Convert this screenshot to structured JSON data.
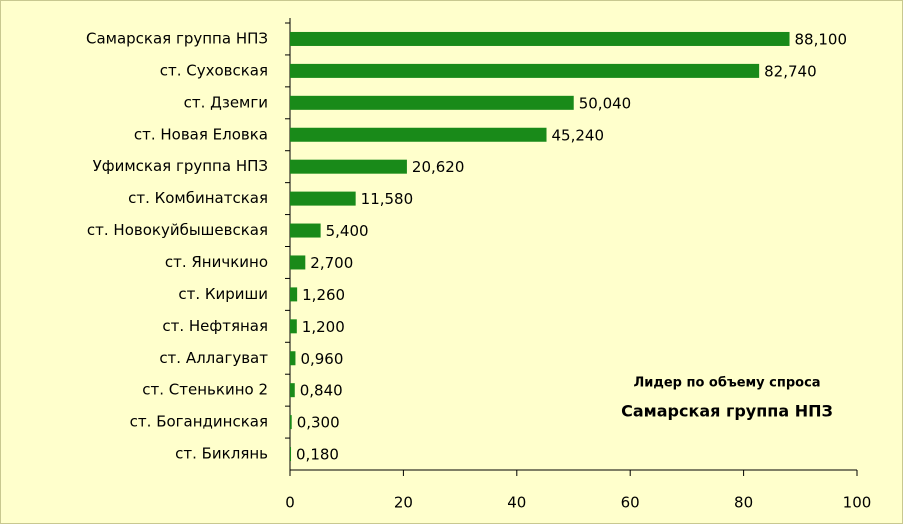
{
  "chart_data": {
    "type": "bar",
    "orientation": "horizontal",
    "categories": [
      "Самарская группа НПЗ",
      "ст. Суховская",
      "ст. Дземги",
      "ст. Новая Еловка",
      "Уфимская группа НПЗ",
      "ст. Комбинатская",
      "ст. Новокуйбышевская",
      "ст. Яничкино",
      "ст. Кириши",
      "ст. Нефтяная",
      "ст. Аллагуват",
      "ст. Стенькино 2",
      "ст. Богандинская",
      "ст. Биклянь"
    ],
    "values": [
      88.1,
      82.74,
      50.04,
      45.24,
      20.62,
      11.58,
      5.4,
      2.7,
      1.26,
      1.2,
      0.96,
      0.84,
      0.3,
      0.18
    ],
    "value_labels": [
      "88,100",
      "82,740",
      "50,040",
      "45,240",
      "20,620",
      "11,580",
      "5,400",
      "2,700",
      "1,260",
      "1,200",
      "0,960",
      "0,840",
      "0,300",
      "0,180"
    ],
    "color": "#198a19",
    "xlim": [
      0,
      100
    ],
    "xticks": [
      0,
      20,
      40,
      60,
      80,
      100
    ],
    "annotations": [
      "Лидер по объему спроса",
      "Самарская группа НПЗ"
    ]
  }
}
